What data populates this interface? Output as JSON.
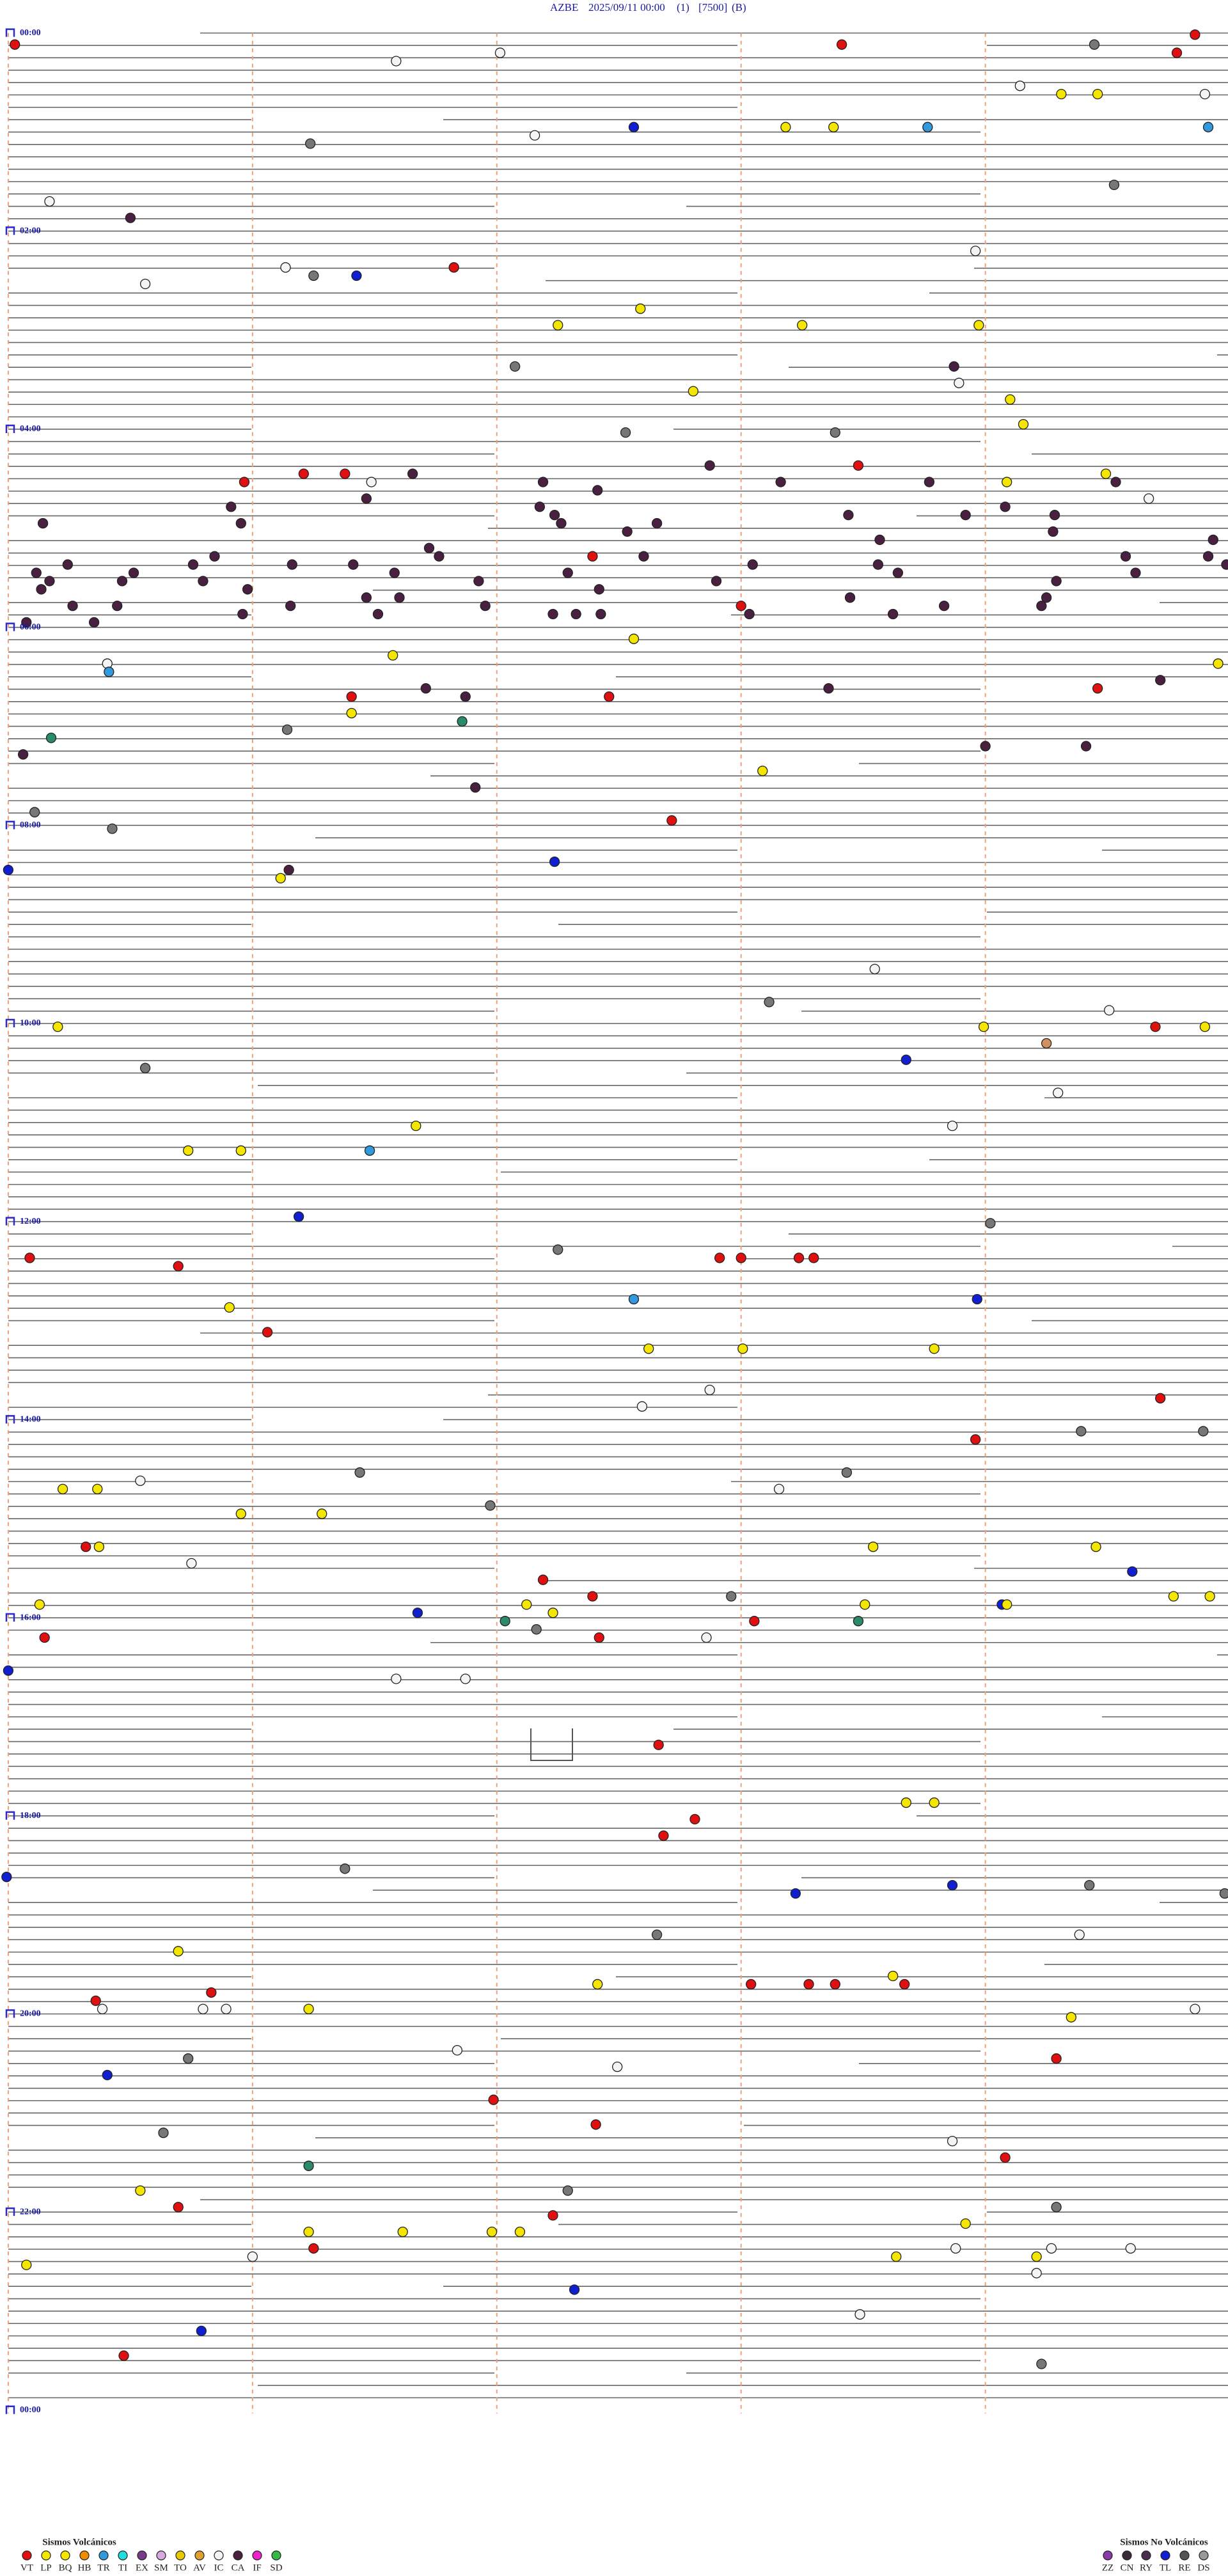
{
  "header": {
    "station": "AZBE",
    "datetime": "2025/09/11 00:00",
    "channel": "(1)",
    "scale": "[7500]",
    "mode": "(B)"
  },
  "hour_labels": [
    "00:00",
    "02:00",
    "04:00",
    "06:00",
    "08:00",
    "10:00",
    "12:00",
    "14:00",
    "16:00",
    "18:00",
    "20:00",
    "22:00",
    "00:00"
  ],
  "legend": {
    "volcanic": {
      "title": "Sismos Volcánicos",
      "items": [
        {
          "code": "VT",
          "color": "#e01010"
        },
        {
          "code": "LP",
          "color": "#f5e600"
        },
        {
          "code": "BQ",
          "color": "#f5e600"
        },
        {
          "code": "HB",
          "color": "#f08c00"
        },
        {
          "code": "TR",
          "color": "#3399dd"
        },
        {
          "code": "TI",
          "color": "#22dddd"
        },
        {
          "code": "EX",
          "color": "#7a3a8a"
        },
        {
          "code": "SM",
          "color": "#d8a8e0"
        },
        {
          "code": "TO",
          "color": "#e8c800"
        },
        {
          "code": "AV",
          "color": "#e0a030"
        },
        {
          "code": "IC",
          "color": "#f4f4f4"
        },
        {
          "code": "CA",
          "color": "#4a2040"
        },
        {
          "code": "IF",
          "color": "#ee22cc"
        },
        {
          "code": "SD",
          "color": "#33bb44"
        }
      ]
    },
    "non_volcanic": {
      "title": "Sismos No Volcánicos",
      "items": [
        {
          "code": "ZZ",
          "color": "#8a3aa8"
        },
        {
          "code": "CN",
          "color": "#3a2a3a"
        },
        {
          "code": "RY",
          "color": "#4a3050"
        },
        {
          "code": "TL",
          "color": "#1020d0"
        },
        {
          "code": "RE",
          "color": "#555555"
        },
        {
          "code": "DS",
          "color": "#999999"
        }
      ]
    }
  }
}
